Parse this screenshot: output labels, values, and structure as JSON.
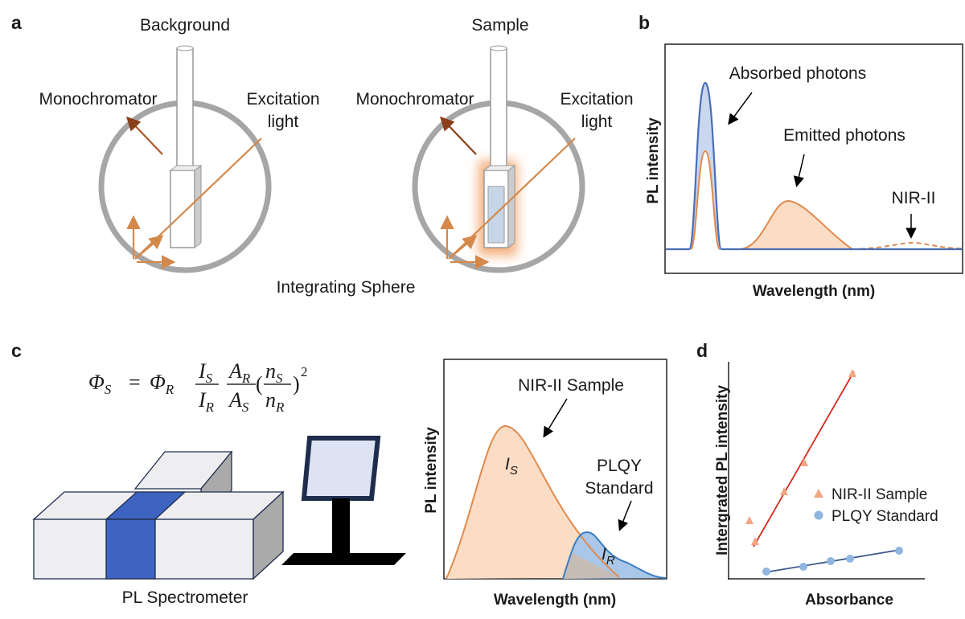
{
  "panel_labels": [
    "a",
    "b",
    "c",
    "d"
  ],
  "panel_a": {
    "background_title": "Background",
    "sample_title": "Sample",
    "monochromator": [
      "Monochromator",
      "Monochromator"
    ],
    "excitation": [
      [
        "Excitation",
        "light"
      ],
      [
        "Excitation",
        "light"
      ]
    ],
    "sphere_label": "Integrating Sphere"
  },
  "panel_b": {
    "y_label": "PL intensity",
    "x_label": "Wavelength (nm)",
    "annotations": [
      "Absorbed photons",
      "Emitted photons",
      "NIR-II"
    ]
  },
  "panel_c": {
    "formula": {
      "lhs": {
        "main": "Φ",
        "sub": "S"
      },
      "eq": "=",
      "coef": {
        "main": "Φ",
        "sub": "R"
      },
      "fracs": [
        {
          "num": {
            "main": "I",
            "sub": "S"
          },
          "den": {
            "main": "I",
            "sub": "R"
          }
        },
        {
          "num": {
            "main": "A",
            "sub": "R"
          },
          "den": {
            "main": "A",
            "sub": "S"
          }
        },
        {
          "num": {
            "main": "n",
            "sub": "S"
          },
          "den": {
            "main": "n",
            "sub": "R"
          }
        }
      ],
      "open": "(",
      "close": ")",
      "power": "2"
    },
    "instrument": "PL Spectrometer",
    "y_label": "PL intensity",
    "x_label": "Wavelength (nm)",
    "sample_label": "NIR-II Sample",
    "standard_label": [
      "PLQY",
      "Standard"
    ],
    "sample_area": {
      "main": "I",
      "sub": "S"
    },
    "standard_area": {
      "main": "I",
      "sub": "R"
    }
  },
  "panel_d": {
    "y_label": "Intergrated PL intensity",
    "x_label": "Absorbance",
    "legend": [
      "NIR-II Sample",
      "PLQY Standard"
    ]
  }
}
